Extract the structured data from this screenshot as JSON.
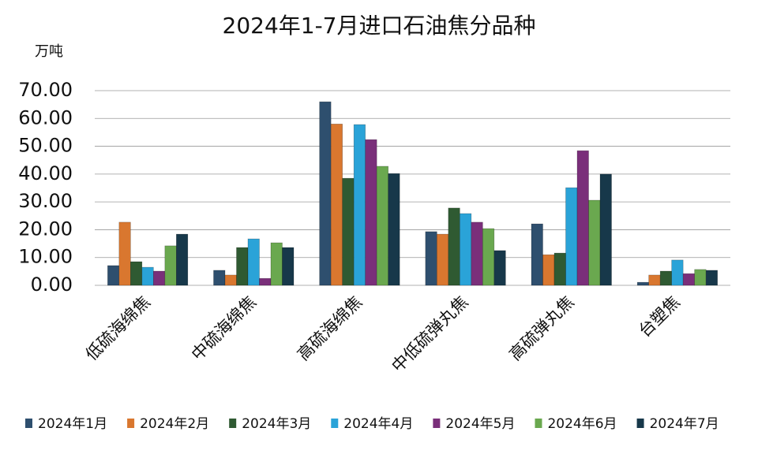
{
  "chart_data": {
    "type": "bar",
    "title": "2024年1-7月进口石油焦分品种",
    "y_axis_label": "万吨",
    "categories": [
      "低硫海绵焦",
      "中硫海绵焦",
      "高硫海绵焦",
      "中低硫弹丸焦",
      "高硫弹丸焦",
      "台塑焦"
    ],
    "series": [
      {
        "name": "2024年1月",
        "color": "#2e4f6e",
        "values": [
          7.1,
          5.4,
          66.0,
          19.3,
          22.1,
          1.1
        ]
      },
      {
        "name": "2024年2月",
        "color": "#d9772f",
        "values": [
          22.7,
          3.7,
          58.0,
          18.4,
          11.0,
          3.7
        ]
      },
      {
        "name": "2024年3月",
        "color": "#2f5a32",
        "values": [
          8.5,
          13.6,
          38.5,
          27.8,
          11.6,
          5.1
        ]
      },
      {
        "name": "2024年4月",
        "color": "#2aa3d8",
        "values": [
          6.5,
          16.7,
          57.8,
          25.8,
          35.1,
          9.1
        ]
      },
      {
        "name": "2024年5月",
        "color": "#7a2f7a",
        "values": [
          5.1,
          2.5,
          52.4,
          22.7,
          48.4,
          4.2
        ]
      },
      {
        "name": "2024年6月",
        "color": "#6aa84f",
        "values": [
          14.2,
          15.3,
          42.8,
          20.4,
          30.6,
          5.7
        ]
      },
      {
        "name": "2024年7月",
        "color": "#17384a",
        "values": [
          18.4,
          13.6,
          40.2,
          12.5,
          40.0,
          5.4
        ]
      }
    ],
    "ylim": [
      0,
      70
    ],
    "yticks": [
      {
        "value": 0,
        "label": "0.00"
      },
      {
        "value": 10,
        "label": "10.00"
      },
      {
        "value": 20,
        "label": "20.00"
      },
      {
        "value": 30,
        "label": "30.00"
      },
      {
        "value": 40,
        "label": "40.00"
      },
      {
        "value": 50,
        "label": "50.00"
      },
      {
        "value": 60,
        "label": "60.00"
      },
      {
        "value": 70,
        "label": "70.00"
      }
    ],
    "grid": true,
    "legend": "bottom"
  }
}
